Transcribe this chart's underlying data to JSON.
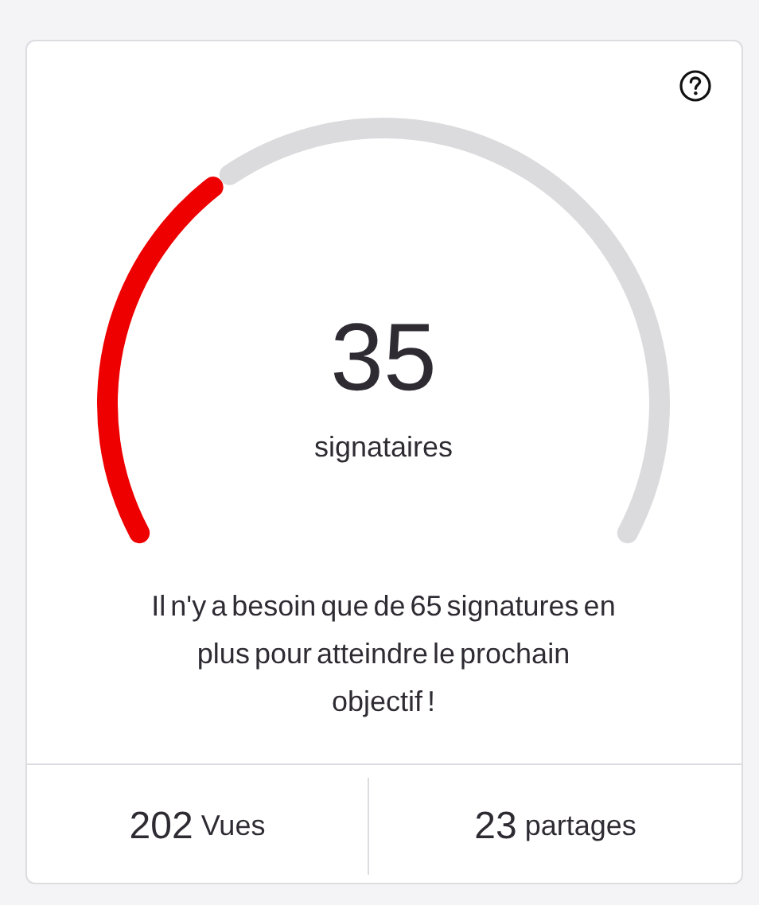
{
  "chart_data": {
    "type": "donut",
    "categories": [
      null,
      null
    ],
    "values": [
      35,
      65
    ],
    "colors": [
      "#ee0000",
      "#dbdadd"
    ],
    "annotations": [
      "35",
      "signataires",
      "Il n'y a besoin que de 65 signatures en plus pour atteindre le prochain objectif !",
      "202 Vues",
      "23 partages"
    ]
  }
}
